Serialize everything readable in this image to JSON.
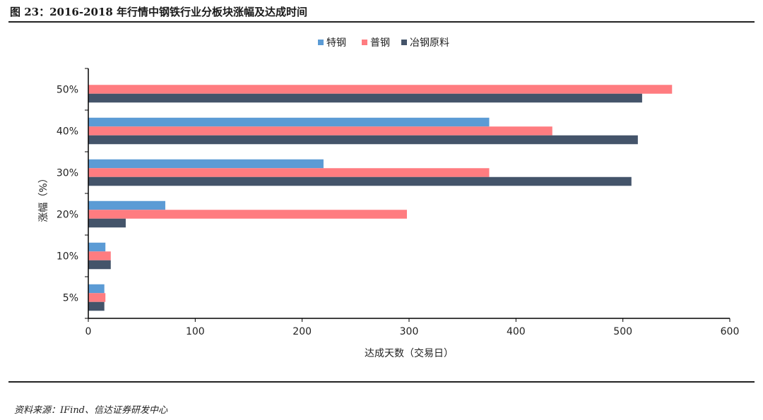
{
  "title": "图 23：2016-2018 年行情中钢铁行业分板块涨幅及达成时间",
  "source": "资料来源：IFind、信达证券研发中心",
  "chart_data": {
    "type": "bar",
    "orientation": "horizontal",
    "categories": [
      "50%",
      "40%",
      "30%",
      "20%",
      "10%",
      "5%"
    ],
    "series": [
      {
        "name": "特钢",
        "color": "#5B9BD5",
        "values": [
          null,
          375,
          220,
          72,
          16,
          15
        ]
      },
      {
        "name": "普钢",
        "color": "#FF7C80",
        "values": [
          546,
          434,
          375,
          298,
          21,
          16
        ]
      },
      {
        "name": "冶钢原料",
        "color": "#44546A",
        "values": [
          518,
          514,
          508,
          35,
          21,
          15
        ]
      }
    ],
    "xlabel": "达成天数（交易日）",
    "ylabel": "涨幅（%）",
    "xlim": [
      0,
      600
    ],
    "xticks": [
      "0",
      "100",
      "200",
      "300",
      "400",
      "500",
      "600"
    ],
    "legend": "top-center",
    "grid": false
  }
}
